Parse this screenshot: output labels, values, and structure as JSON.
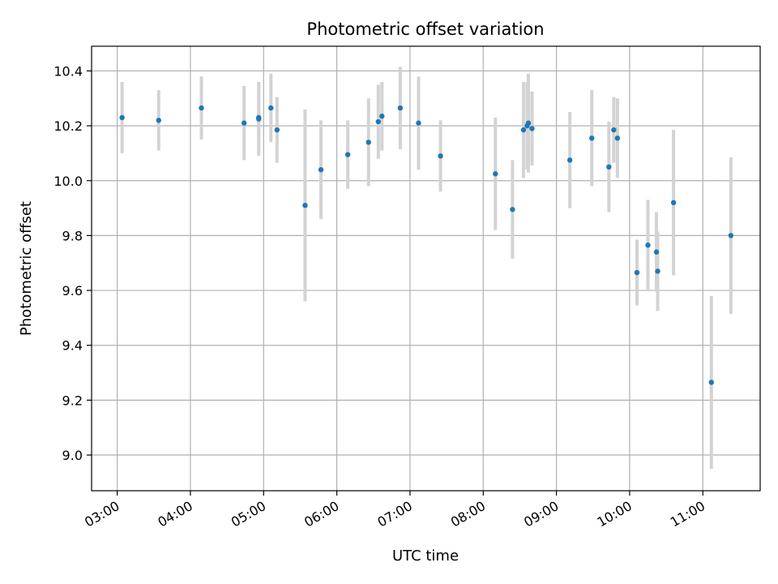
{
  "chart_data": {
    "type": "scatter",
    "title": "Photometric offset variation",
    "xlabel": "UTC time",
    "ylabel": "Photometric offset",
    "x_axis_kind": "time",
    "xlim": [
      "02:39",
      "11:47"
    ],
    "ylim": [
      8.87,
      10.49
    ],
    "grid": true,
    "x_ticks": [
      "03:00",
      "04:00",
      "05:00",
      "06:00",
      "07:00",
      "08:00",
      "09:00",
      "10:00",
      "11:00"
    ],
    "y_ticks": [
      9.0,
      9.2,
      9.4,
      9.6,
      9.8,
      10.0,
      10.2,
      10.4
    ],
    "y_tick_labels": [
      "9.0",
      "9.2",
      "9.4",
      "9.6",
      "9.8",
      "10.0",
      "10.2",
      "10.4"
    ],
    "marker_color": "#1f77b4",
    "errorbar_color": "#d3d3d3",
    "points": [
      {
        "x": "03:04",
        "y": 10.23,
        "err": 0.13
      },
      {
        "x": "03:34",
        "y": 10.22,
        "err": 0.11
      },
      {
        "x": "04:09",
        "y": 10.265,
        "err": 0.115
      },
      {
        "x": "04:44",
        "y": 10.21,
        "err": 0.135
      },
      {
        "x": "04:56",
        "y": 10.23,
        "err": 0.13
      },
      {
        "x": "04:56",
        "y": 10.225,
        "err": 0.135
      },
      {
        "x": "05:06",
        "y": 10.265,
        "err": 0.125
      },
      {
        "x": "05:11",
        "y": 10.185,
        "err": 0.12
      },
      {
        "x": "05:34",
        "y": 9.91,
        "err": 0.35
      },
      {
        "x": "05:47",
        "y": 10.04,
        "err": 0.18
      },
      {
        "x": "06:09",
        "y": 10.095,
        "err": 0.125
      },
      {
        "x": "06:26",
        "y": 10.14,
        "err": 0.16
      },
      {
        "x": "06:34",
        "y": 10.215,
        "err": 0.135
      },
      {
        "x": "06:37",
        "y": 10.235,
        "err": 0.125
      },
      {
        "x": "06:52",
        "y": 10.265,
        "err": 0.15
      },
      {
        "x": "07:07",
        "y": 10.21,
        "err": 0.17
      },
      {
        "x": "07:25",
        "y": 10.09,
        "err": 0.13
      },
      {
        "x": "08:10",
        "y": 10.025,
        "err": 0.205
      },
      {
        "x": "08:24",
        "y": 9.895,
        "err": 0.18
      },
      {
        "x": "08:33",
        "y": 10.185,
        "err": 0.175
      },
      {
        "x": "08:36",
        "y": 10.2,
        "err": 0.16
      },
      {
        "x": "08:37",
        "y": 10.21,
        "err": 0.18
      },
      {
        "x": "08:40",
        "y": 10.19,
        "err": 0.135
      },
      {
        "x": "09:11",
        "y": 10.075,
        "err": 0.175
      },
      {
        "x": "09:29",
        "y": 10.155,
        "err": 0.175
      },
      {
        "x": "09:43",
        "y": 10.05,
        "err": 0.165
      },
      {
        "x": "09:47",
        "y": 10.185,
        "err": 0.12
      },
      {
        "x": "09:50",
        "y": 10.155,
        "err": 0.145
      },
      {
        "x": "10:06",
        "y": 9.665,
        "err": 0.12
      },
      {
        "x": "10:15",
        "y": 9.765,
        "err": 0.165
      },
      {
        "x": "10:22",
        "y": 9.74,
        "err": 0.145
      },
      {
        "x": "10:23",
        "y": 9.67,
        "err": 0.145
      },
      {
        "x": "10:36",
        "y": 9.92,
        "err": 0.265
      },
      {
        "x": "11:07",
        "y": 9.265,
        "err": 0.315
      },
      {
        "x": "11:23",
        "y": 9.8,
        "err": 0.285
      }
    ]
  }
}
